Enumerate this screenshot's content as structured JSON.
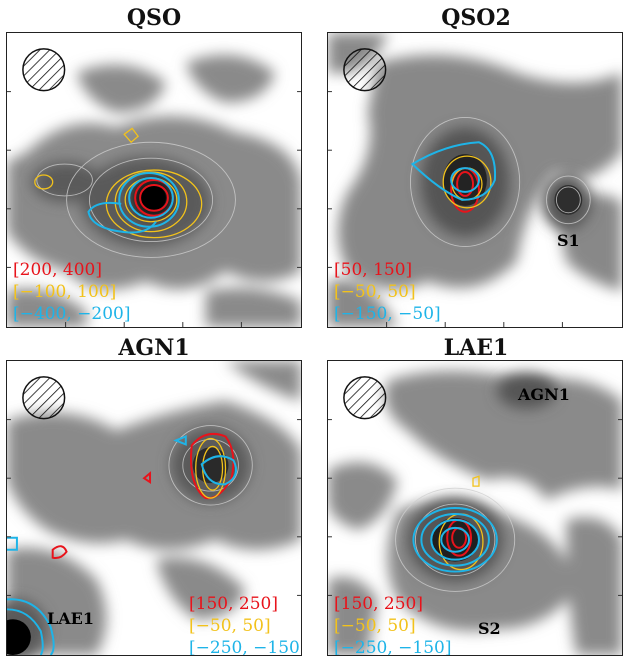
{
  "colors": {
    "red": "#e8131b",
    "yellow": "#f2c21b",
    "cyan": "#1eb4e8",
    "grey_contour": "#cfcfcf"
  },
  "panels": [
    {
      "title": "QSO",
      "legend": [
        "[200, 400]",
        "[−100, 100]",
        "[−400, −200]"
      ],
      "labels": []
    },
    {
      "title": "QSO2",
      "legend": [
        "[50, 150]",
        "[−50, 50]",
        "[−150, −50]"
      ],
      "labels": [
        "S1"
      ]
    },
    {
      "title": "AGN1",
      "legend": [
        "[150, 250]",
        "[−50, 50]",
        "[−250, −150]"
      ],
      "labels": [
        "LAE1"
      ]
    },
    {
      "title": "LAE1",
      "legend": [
        "[150, 250]",
        "[−50, 50]",
        "[−250, −150]"
      ],
      "labels": [
        "AGN1",
        "S2"
      ]
    }
  ],
  "beam_icon": "hatched-circle-icon"
}
